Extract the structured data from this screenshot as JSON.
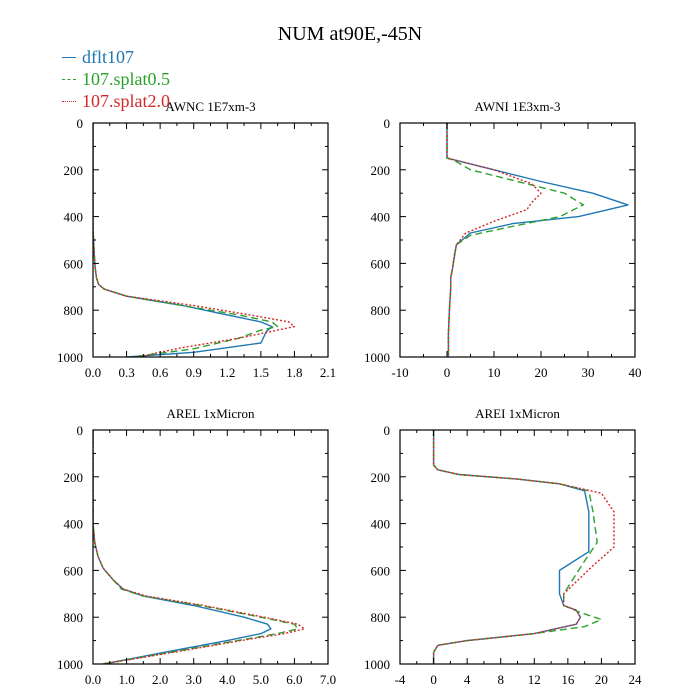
{
  "figure": {
    "title": "NUM at90E,-45N"
  },
  "legend": [
    {
      "label": "dflt107",
      "color": "#1f77b4",
      "dash": "solid"
    },
    {
      "label": "107.splat0.5",
      "color": "#2ca02c",
      "dash": "longdash"
    },
    {
      "label": "107.splat2.0",
      "color": "#d62728",
      "dash": "dotted"
    }
  ],
  "chart_data": [
    {
      "type": "line",
      "title": "AWNC  1E7xm-3",
      "xlim": [
        0,
        2.1
      ],
      "xticks": [
        "0.0",
        "0.3",
        "0.6",
        "0.9",
        "1.2",
        "1.5",
        "1.8",
        "2.1"
      ],
      "xtick_values": [
        0,
        0.3,
        0.6,
        0.9,
        1.2,
        1.5,
        1.8,
        2.1
      ],
      "ylim": [
        0,
        1000
      ],
      "yticks": [
        "0",
        "200",
        "400",
        "600",
        "800",
        "1000"
      ],
      "ytick_values": [
        0,
        200,
        400,
        600,
        800,
        1000
      ],
      "series": [
        {
          "name": "dflt107",
          "x": [
            0,
            0,
            0.01,
            0.02,
            0.03,
            0.05,
            0.1,
            0.3,
            0.8,
            1.2,
            1.5,
            1.6,
            1.55,
            1.5,
            0.9,
            0.3
          ],
          "y": [
            0,
            450,
            550,
            620,
            660,
            690,
            710,
            740,
            780,
            820,
            850,
            870,
            890,
            940,
            980,
            1000
          ]
        },
        {
          "name": "107.splat0.5",
          "x": [
            0,
            0,
            0.01,
            0.02,
            0.03,
            0.05,
            0.1,
            0.3,
            0.8,
            1.3,
            1.6,
            1.65,
            1.5,
            1.3,
            0.9,
            0.35
          ],
          "y": [
            0,
            450,
            550,
            620,
            660,
            690,
            710,
            740,
            780,
            820,
            850,
            870,
            885,
            920,
            965,
            1000
          ]
        },
        {
          "name": "107.splat2.0",
          "x": [
            0,
            0,
            0.01,
            0.02,
            0.03,
            0.05,
            0.1,
            0.3,
            0.9,
            1.4,
            1.75,
            1.8,
            1.6,
            1.3,
            0.8,
            0.4
          ],
          "y": [
            0,
            450,
            550,
            620,
            660,
            690,
            710,
            740,
            780,
            820,
            850,
            870,
            890,
            920,
            960,
            1000
          ]
        }
      ]
    },
    {
      "type": "line",
      "title": "AWNI  1E3xm-3",
      "xlim": [
        -10,
        40
      ],
      "xticks": [
        "-10",
        "0",
        "10",
        "20",
        "30",
        "40"
      ],
      "xtick_values": [
        -10,
        0,
        10,
        20,
        30,
        40
      ],
      "ylim": [
        0,
        1000
      ],
      "yticks": [
        "0",
        "200",
        "400",
        "600",
        "800",
        "1000"
      ],
      "ytick_values": [
        0,
        200,
        400,
        600,
        800,
        1000
      ],
      "series": [
        {
          "name": "dflt107",
          "x": [
            0,
            0,
            2,
            10,
            20,
            31,
            38.5,
            28,
            14,
            5,
            2,
            1.5,
            1.2,
            0.8,
            0.8,
            0.5,
            0.3,
            0.3
          ],
          "y": [
            0,
            150,
            160,
            200,
            250,
            300,
            350,
            400,
            430,
            470,
            520,
            580,
            620,
            660,
            700,
            800,
            900,
            1000
          ]
        },
        {
          "name": "107.splat0.5",
          "x": [
            0,
            0,
            1.5,
            5,
            15,
            25,
            29,
            24,
            12,
            5,
            2,
            1.5,
            1.2,
            0.8,
            0.8,
            0.5,
            0.3,
            0.3
          ],
          "y": [
            0,
            150,
            160,
            200,
            250,
            300,
            350,
            400,
            450,
            480,
            520,
            570,
            620,
            660,
            700,
            800,
            900,
            1000
          ]
        },
        {
          "name": "107.splat2.0",
          "x": [
            0,
            0,
            2,
            10,
            18,
            20,
            18,
            17,
            10,
            4,
            2,
            1.5,
            1.2,
            0.8,
            0.8,
            0.5,
            0.3,
            0.3
          ],
          "y": [
            0,
            150,
            160,
            200,
            260,
            300,
            340,
            370,
            420,
            470,
            520,
            570,
            620,
            660,
            700,
            800,
            900,
            1000
          ]
        }
      ]
    },
    {
      "type": "line",
      "title": "AREL  1xMicron",
      "xlim": [
        0,
        7
      ],
      "xticks": [
        "0.0",
        "1.0",
        "2.0",
        "3.0",
        "4.0",
        "5.0",
        "6.0",
        "7.0"
      ],
      "xtick_values": [
        0,
        1,
        2,
        3,
        4,
        5,
        6,
        7
      ],
      "ylim": [
        0,
        1000
      ],
      "yticks": [
        "0",
        "200",
        "400",
        "600",
        "800",
        "1000"
      ],
      "ytick_values": [
        0,
        200,
        400,
        600,
        800,
        1000
      ],
      "series": [
        {
          "name": "dflt107",
          "x": [
            0,
            0,
            0.05,
            0.15,
            0.3,
            0.6,
            0.9,
            1.5,
            3,
            4.5,
            5.2,
            5.3,
            5,
            4,
            2.5,
            0.3
          ],
          "y": [
            0,
            400,
            480,
            540,
            590,
            640,
            680,
            710,
            750,
            800,
            830,
            850,
            870,
            900,
            940,
            1000
          ]
        },
        {
          "name": "107.splat0.5",
          "x": [
            0,
            0,
            0.05,
            0.15,
            0.3,
            0.6,
            0.85,
            1.5,
            3.2,
            5,
            6,
            6.1,
            5.5,
            4.3,
            2.7,
            0.3
          ],
          "y": [
            0,
            400,
            480,
            540,
            590,
            640,
            680,
            710,
            750,
            800,
            830,
            850,
            870,
            900,
            940,
            1000
          ]
        },
        {
          "name": "107.splat2.0",
          "x": [
            0,
            0,
            0.05,
            0.15,
            0.3,
            0.6,
            0.9,
            1.6,
            3.3,
            5.1,
            6.1,
            6.3,
            5.7,
            4.4,
            2.8,
            0.3
          ],
          "y": [
            0,
            400,
            480,
            540,
            590,
            640,
            680,
            710,
            750,
            800,
            830,
            850,
            870,
            900,
            940,
            1000
          ]
        }
      ]
    },
    {
      "type": "line",
      "title": "AREI  1xMicron",
      "xlim": [
        -4,
        24
      ],
      "xticks": [
        "-4",
        "0",
        "4",
        "8",
        "12",
        "16",
        "20",
        "24"
      ],
      "xtick_values": [
        -4,
        0,
        4,
        8,
        12,
        16,
        20,
        24
      ],
      "ylim": [
        0,
        1000
      ],
      "yticks": [
        "0",
        "200",
        "400",
        "600",
        "800",
        "1000"
      ],
      "ytick_values": [
        0,
        200,
        400,
        600,
        800,
        1000
      ],
      "series": [
        {
          "name": "dflt107",
          "x": [
            0,
            0,
            0.5,
            3,
            10,
            15,
            18,
            18.5,
            18.5,
            15,
            15,
            15.5,
            17,
            17.5,
            17,
            12,
            4,
            0.5,
            0,
            0
          ],
          "y": [
            0,
            150,
            170,
            190,
            210,
            230,
            260,
            350,
            520,
            600,
            700,
            750,
            770,
            800,
            830,
            870,
            900,
            920,
            950,
            1000
          ]
        },
        {
          "name": "107.splat0.5",
          "x": [
            0,
            0,
            0.5,
            3,
            10,
            15,
            18.5,
            19,
            19.5,
            18,
            15.5,
            15.5,
            17.5,
            20,
            18,
            12,
            4,
            0.5,
            0,
            0
          ],
          "y": [
            0,
            150,
            170,
            190,
            210,
            230,
            260,
            350,
            480,
            560,
            700,
            750,
            780,
            810,
            840,
            870,
            900,
            920,
            950,
            1000
          ]
        },
        {
          "name": "107.splat2.0",
          "x": [
            0,
            0,
            0.5,
            3,
            10,
            15,
            20,
            21.5,
            21.5,
            19,
            15.5,
            15.5,
            17,
            17.5,
            17,
            12,
            4,
            0.5,
            0,
            0
          ],
          "y": [
            0,
            150,
            170,
            190,
            210,
            230,
            270,
            350,
            500,
            580,
            700,
            750,
            770,
            800,
            830,
            870,
            900,
            920,
            950,
            1000
          ]
        }
      ]
    }
  ]
}
